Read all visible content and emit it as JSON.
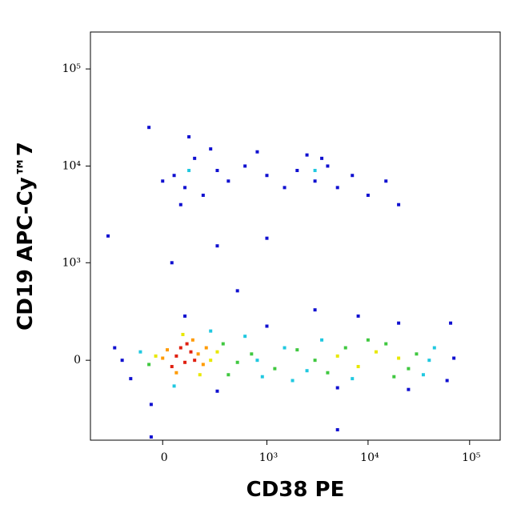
{
  "chart_data": {
    "type": "scatter",
    "x_label": "CD38 PE",
    "y_label": "CD19 APC-Cy™7",
    "xscale": "biexponential",
    "yscale": "biexponential",
    "xlim": [
      -470,
      200000
    ],
    "ylim": [
      -650,
      240000
    ],
    "xticks": [
      0,
      {
        "value": 1000,
        "label": "10³"
      },
      {
        "value": 10000,
        "label": "10⁴"
      },
      {
        "value": 100000,
        "label": "10⁵"
      }
    ],
    "yticks": [
      0,
      {
        "value": 1000,
        "label": "10³"
      },
      {
        "value": 10000,
        "label": "10⁴"
      },
      {
        "value": 100000,
        "label": "10⁵"
      }
    ],
    "x": [
      60,
      100,
      130,
      80,
      150,
      40,
      110,
      20,
      170,
      200,
      60,
      140,
      0,
      220,
      -30,
      250,
      90,
      180,
      300,
      5000,
      12000,
      20000,
      8000,
      -60,
      350,
      500,
      700,
      1200,
      2000,
      3000,
      4000,
      6000,
      15000,
      25000,
      30000,
      18000,
      10000,
      400,
      -100,
      600,
      900,
      1500,
      2500,
      3500,
      7000,
      40000,
      35000,
      50,
      250,
      800,
      1800,
      45000,
      -200,
      -150,
      -250,
      70000,
      60000,
      100,
      300,
      1000,
      5000,
      20000,
      3000,
      500,
      -50,
      8000,
      65000,
      25000,
      100,
      50,
      150,
      200,
      300,
      0,
      80,
      400,
      600,
      1000,
      1500,
      2000,
      3000,
      4000,
      5000,
      3500,
      7000,
      10000,
      15000,
      20000,
      250,
      800,
      120,
      2500,
      -60,
      120,
      3000,
      -300,
      300,
      1000,
      40,
      -50,
      5000
    ],
    "y": [
      20,
      -10,
      40,
      60,
      0,
      -30,
      80,
      50,
      30,
      -20,
      -60,
      100,
      10,
      60,
      20,
      0,
      130,
      -70,
      40,
      20,
      40,
      10,
      -30,
      -20,
      80,
      -10,
      30,
      -40,
      50,
      0,
      -60,
      60,
      80,
      -40,
      30,
      -80,
      100,
      -70,
      40,
      120,
      -80,
      60,
      -50,
      100,
      -90,
      0,
      -70,
      -130,
      150,
      0,
      -100,
      60,
      0,
      -90,
      60,
      10,
      -100,
      250,
      -160,
      180,
      -140,
      200,
      300,
      500,
      -250,
      250,
      200,
      -150,
      6000,
      8000,
      12000,
      5000,
      9000,
      7000,
      4000,
      7000,
      10000,
      8000,
      6000,
      9000,
      7000,
      10000,
      6000,
      12000,
      8000,
      5000,
      7000,
      4000,
      15000,
      14000,
      20000,
      13000,
      25000,
      9000,
      9000,
      1900,
      1500,
      1800,
      1000,
      -600,
      -500
    ],
    "colors": [
      "#e02010",
      "#e02010",
      "#e02010",
      "#e02010",
      "#e02010",
      "#e02010",
      "#e02010",
      "#ff9a00",
      "#ff9a00",
      "#ff9a00",
      "#ff9a00",
      "#ff9a00",
      "#ff9a00",
      "#ff9a00",
      "#e8e800",
      "#e8e800",
      "#e8e800",
      "#e8e800",
      "#e8e800",
      "#e8e800",
      "#e8e800",
      "#e8e800",
      "#e8e800",
      "#40c840",
      "#40c840",
      "#40c840",
      "#40c840",
      "#40c840",
      "#40c840",
      "#40c840",
      "#40c840",
      "#40c840",
      "#40c840",
      "#40c840",
      "#40c840",
      "#40c840",
      "#40c840",
      "#40c840",
      "#20c8e0",
      "#20c8e0",
      "#20c8e0",
      "#20c8e0",
      "#20c8e0",
      "#20c8e0",
      "#20c8e0",
      "#20c8e0",
      "#20c8e0",
      "#20c8e0",
      "#20c8e0",
      "#20c8e0",
      "#20c8e0",
      "#20c8e0",
      "#1010d0",
      "#1010d0",
      "#1010d0",
      "#1010d0",
      "#1010d0",
      "#1010d0",
      "#1010d0",
      "#1010d0",
      "#1010d0",
      "#1010d0",
      "#1010d0",
      "#1010d0",
      "#1010d0",
      "#1010d0",
      "#1010d0",
      "#1010d0",
      "#1010d0",
      "#1010d0",
      "#1010d0",
      "#1010d0",
      "#1010d0",
      "#1010d0",
      "#1010d0",
      "#1010d0",
      "#1010d0",
      "#1010d0",
      "#1010d0",
      "#1010d0",
      "#1010d0",
      "#1010d0",
      "#1010d0",
      "#1010d0",
      "#1010d0",
      "#1010d0",
      "#1010d0",
      "#1010d0",
      "#1010d0",
      "#1010d0",
      "#1010d0",
      "#1010d0",
      "#1010d0",
      "#20c8e0",
      "#20c8e0",
      "#1010d0",
      "#1010d0",
      "#1010d0",
      "#1010d0",
      "#1010d0",
      "#1010d0"
    ]
  }
}
